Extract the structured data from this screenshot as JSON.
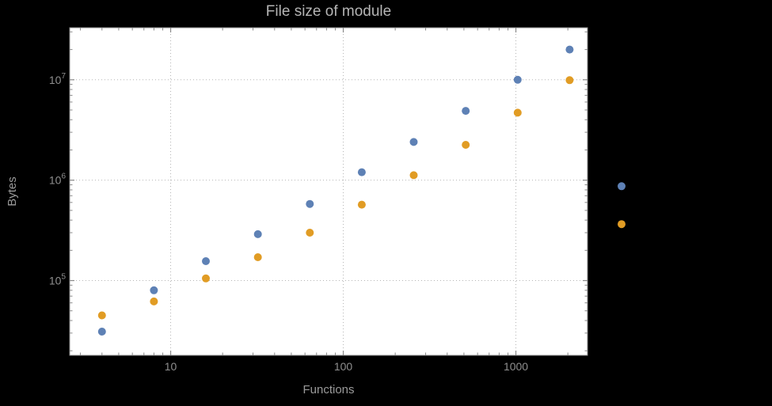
{
  "chart_data": {
    "type": "scatter",
    "title": "File size of module",
    "xlabel": "Functions",
    "ylabel": "Bytes",
    "x_scale": "log",
    "y_scale": "log",
    "xlim": [
      2.6,
      2600
    ],
    "ylim": [
      18000,
      33000000
    ],
    "x_ticks": [
      10,
      100,
      1000
    ],
    "x_tick_labels": [
      "10",
      "100",
      "1000"
    ],
    "y_ticks": [
      100000,
      1000000,
      10000000
    ],
    "y_tick_base": "10",
    "y_tick_exponents": [
      "5",
      "6",
      "7"
    ],
    "grid": "dotted major gridlines, framed plot, legend none",
    "colors": {
      "background": "#000000",
      "panel": "#ffffff",
      "frame": "#8a8a8a",
      "grid": "#b5b5b5",
      "tick_label": "#8f8f8f",
      "title": "#b5b5b5",
      "axis_label": "#9a9a9a"
    },
    "series": [
      {
        "name": "blue",
        "color": "#5e81b5",
        "x": [
          4,
          8,
          16,
          32,
          64,
          128,
          256,
          512,
          1024,
          2048,
          4096
        ],
        "y": [
          31000,
          80000,
          156000,
          290000,
          580000,
          1200000,
          2400000,
          4900000,
          10000000,
          20000000,
          870000
        ]
      },
      {
        "name": "orange",
        "color": "#e19c24",
        "x": [
          4,
          8,
          16,
          32,
          64,
          128,
          256,
          512,
          1024,
          2048,
          4096
        ],
        "y": [
          45000,
          62000,
          105000,
          171000,
          300000,
          570000,
          1120000,
          2250000,
          4700000,
          9900000,
          365000
        ]
      }
    ]
  }
}
